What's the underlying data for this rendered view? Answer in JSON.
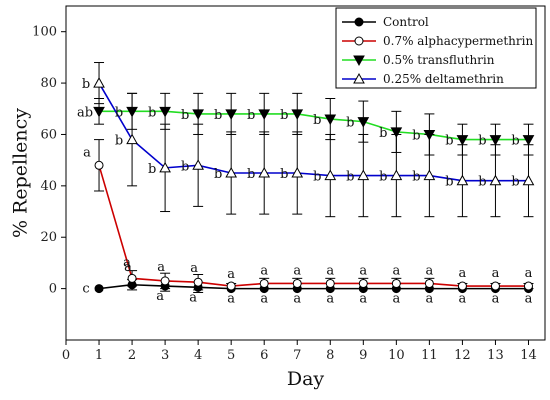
{
  "chart_data": {
    "type": "line",
    "xlabel": "Day",
    "ylabel": "% Repellency",
    "xlim": [
      0,
      14.5
    ],
    "ylim": [
      -20,
      110
    ],
    "x_ticks": [
      0,
      1,
      2,
      3,
      4,
      5,
      6,
      7,
      8,
      9,
      10,
      11,
      12,
      13,
      14
    ],
    "y_ticks": [
      0,
      20,
      40,
      60,
      80,
      100
    ],
    "legend_position": "top-right",
    "x": [
      1,
      2,
      3,
      4,
      5,
      6,
      7,
      8,
      9,
      10,
      11,
      12,
      13,
      14
    ],
    "series": [
      {
        "name": "Control",
        "color": "#000000",
        "marker": "filled-circle",
        "values": [
          0,
          1.5,
          1,
          0.5,
          0,
          0,
          0,
          0,
          0,
          0,
          0,
          0,
          0,
          0
        ],
        "error": [
          0,
          2,
          2,
          2,
          0,
          0,
          0,
          0,
          0,
          0,
          0,
          0,
          0,
          0
        ],
        "letters": [
          "c",
          "a",
          "a",
          "a",
          "a",
          "a",
          "a",
          "a",
          "a",
          "a",
          "a",
          "a",
          "a",
          "a"
        ]
      },
      {
        "name": "0.7% alphacypermethrin",
        "color": "#cc0000",
        "marker": "open-circle",
        "values": [
          48,
          4,
          3,
          2.5,
          1,
          2,
          2,
          2,
          2,
          2,
          2,
          1,
          1,
          1
        ],
        "error": [
          10,
          3,
          3,
          3,
          1,
          2,
          2,
          2,
          2,
          2,
          2,
          1,
          1,
          1
        ],
        "letters": [
          "a",
          "a",
          "a",
          "a",
          "a",
          "a",
          "a",
          "a",
          "a",
          "a",
          "a",
          "a",
          "a",
          "a"
        ]
      },
      {
        "name": "0.5% transfluthrin",
        "color": "#22dd22",
        "marker": "filled-triangle-down",
        "values": [
          69,
          69,
          69,
          68,
          68,
          68,
          68,
          66,
          65,
          61,
          60,
          58,
          58,
          58
        ],
        "error": [
          5,
          7,
          7,
          8,
          8,
          8,
          8,
          8,
          8,
          8,
          8,
          6,
          6,
          6
        ],
        "letters": [
          "ab",
          "b",
          "b",
          "b",
          "b",
          "b",
          "b",
          "b",
          "b",
          "b",
          "b",
          "b",
          "b",
          "b"
        ]
      },
      {
        "name": "0.25% deltamethrin",
        "color": "#0000cc",
        "marker": "open-triangle-up",
        "values": [
          80,
          58,
          47,
          48,
          45,
          45,
          45,
          44,
          44,
          44,
          44,
          42,
          42,
          42
        ],
        "error": [
          8,
          18,
          17,
          16,
          16,
          16,
          16,
          16,
          16,
          16,
          16,
          14,
          14,
          14
        ],
        "letters": [
          "b",
          "b",
          "b",
          "b",
          "b",
          "b",
          "b",
          "b",
          "b",
          "b",
          "b",
          "b",
          "b",
          "b"
        ]
      }
    ]
  }
}
